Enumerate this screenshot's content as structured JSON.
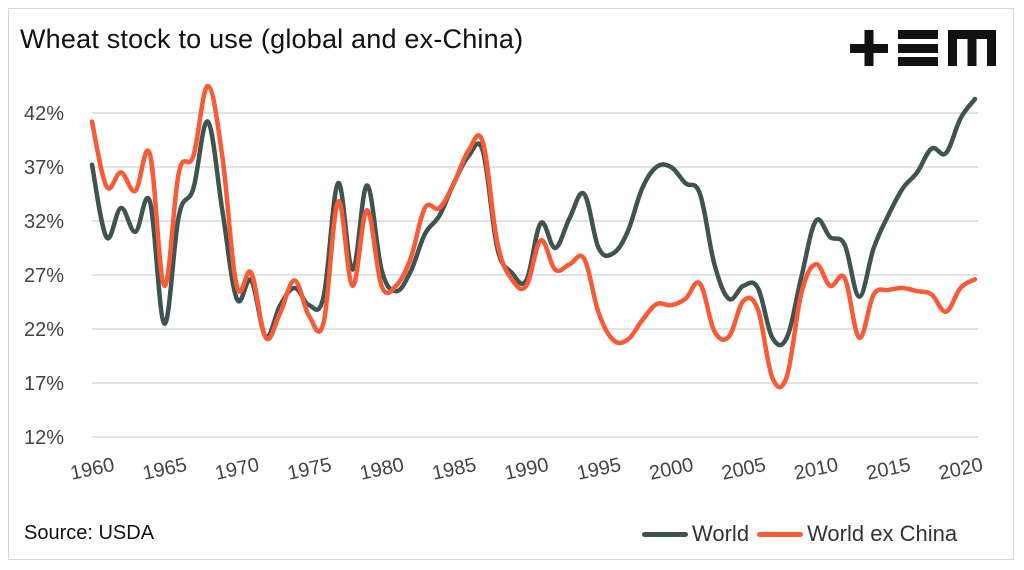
{
  "chart_data": {
    "type": "line",
    "title": "Wheat stock to use (global and ex-China)",
    "source": "Source: USDA",
    "y_ticks": [
      "12%",
      "17%",
      "22%",
      "27%",
      "32%",
      "37%",
      "42%"
    ],
    "x_ticks": [
      "1960",
      "1965",
      "1970",
      "1975",
      "1980",
      "1985",
      "1990",
      "1995",
      "2000",
      "2005",
      "2010",
      "2015",
      "2020"
    ],
    "ylim": [
      12,
      45
    ],
    "xlim": [
      1960,
      2021
    ],
    "grid": "horizontal",
    "legend_position": "bottom-right",
    "x": [
      1960,
      1961,
      1962,
      1963,
      1964,
      1965,
      1966,
      1967,
      1968,
      1969,
      1970,
      1971,
      1972,
      1973,
      1974,
      1975,
      1976,
      1977,
      1978,
      1979,
      1980,
      1981,
      1982,
      1983,
      1984,
      1985,
      1986,
      1987,
      1988,
      1989,
      1990,
      1991,
      1992,
      1993,
      1994,
      1995,
      1996,
      1997,
      1998,
      1999,
      2000,
      2001,
      2002,
      2003,
      2004,
      2005,
      2006,
      2007,
      2008,
      2009,
      2010,
      2011,
      2012,
      2013,
      2014,
      2015,
      2016,
      2017,
      2018,
      2019,
      2020,
      2021
    ],
    "series": [
      {
        "name": "World",
        "color": "#3f5450",
        "values": [
          37.2,
          30.5,
          33.2,
          31.0,
          33.8,
          22.5,
          32.5,
          35.0,
          41.2,
          33.0,
          24.8,
          26.5,
          21.3,
          24.2,
          25.8,
          24.2,
          25.0,
          35.5,
          27.5,
          35.3,
          27.5,
          25.5,
          27.3,
          30.8,
          32.5,
          35.5,
          38.0,
          38.5,
          29.5,
          27.2,
          26.5,
          31.8,
          29.5,
          32.3,
          34.5,
          29.5,
          29.0,
          31.0,
          35.0,
          37.0,
          37.0,
          35.5,
          34.5,
          28.0,
          24.8,
          26.0,
          25.8,
          21.2,
          21.2,
          26.8,
          32.0,
          30.5,
          29.8,
          25.0,
          29.5,
          32.5,
          35.0,
          36.5,
          38.7,
          38.3,
          41.5,
          43.3
        ]
      },
      {
        "name": "World ex China",
        "color": "#f85b35",
        "values": [
          41.2,
          35.2,
          36.5,
          34.8,
          38.2,
          26.0,
          36.5,
          38.0,
          44.5,
          38.0,
          26.0,
          27.2,
          21.2,
          23.5,
          26.5,
          23.2,
          22.6,
          33.8,
          26.0,
          33.0,
          26.0,
          26.0,
          28.5,
          33.2,
          33.2,
          35.5,
          38.5,
          39.3,
          30.0,
          26.6,
          26.0,
          30.2,
          27.5,
          28.0,
          28.5,
          23.5,
          21.0,
          21.0,
          22.8,
          24.3,
          24.2,
          24.8,
          26.2,
          21.8,
          21.3,
          24.6,
          23.8,
          17.5,
          17.6,
          25.3,
          28.0,
          26.0,
          26.7,
          21.2,
          25.2,
          25.6,
          25.8,
          25.5,
          25.2,
          23.6,
          25.8,
          26.6
        ]
      }
    ]
  }
}
